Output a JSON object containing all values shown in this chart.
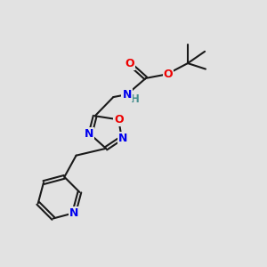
{
  "background_color": "#e2e2e2",
  "bond_color": "#1a1a1a",
  "bond_width": 1.5,
  "atom_colors": {
    "N": "#0000ee",
    "O": "#ee0000",
    "H_N": "#4a9090",
    "C": "#1a1a1a"
  },
  "fig_width": 3.0,
  "fig_height": 3.0,
  "dpi": 100,
  "xlim": [
    0,
    10
  ],
  "ylim": [
    0,
    10
  ]
}
